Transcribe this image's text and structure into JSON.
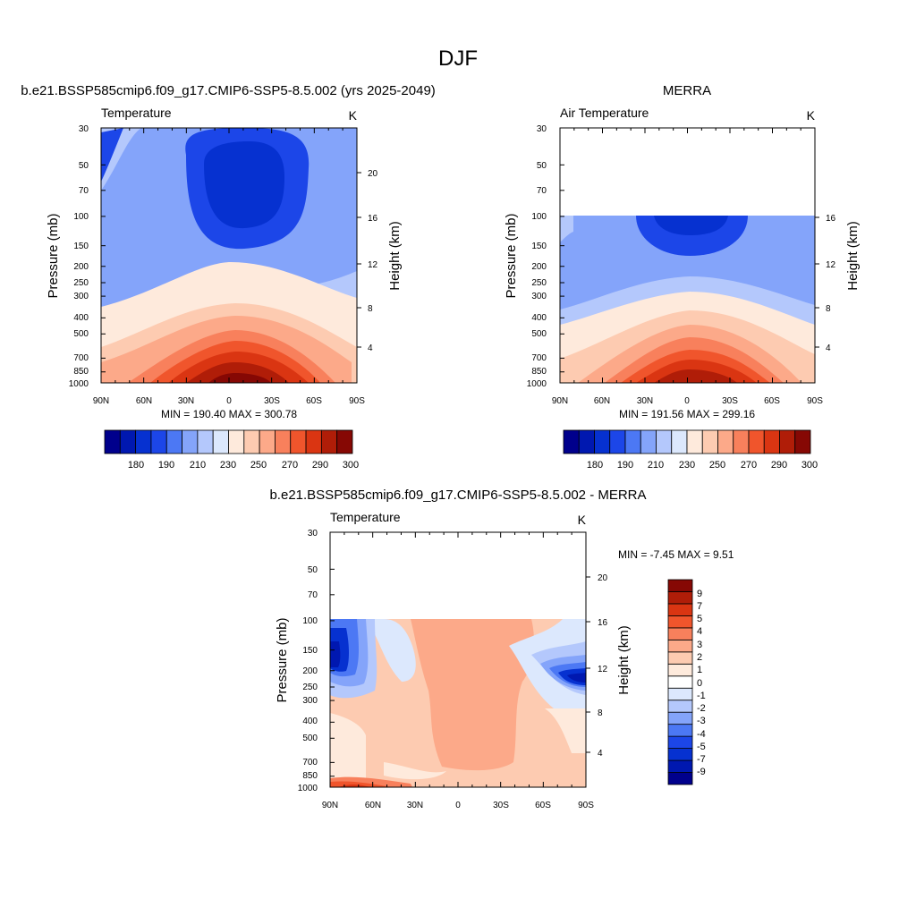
{
  "figure": {
    "title": "DJF"
  },
  "colors": {
    "temp_levels": [
      "#00008c",
      "#0018b0",
      "#0631d0",
      "#1c46e8",
      "#4c78f4",
      "#84a4fa",
      "#b4c8fc",
      "#dce8fd",
      "#feeadc",
      "#fdcbb1",
      "#fca989",
      "#f8805c",
      "#f0552c",
      "#da3512",
      "#b01d08",
      "#860804"
    ],
    "diff_levels": [
      "#00008c",
      "#0018b0",
      "#0631d0",
      "#1c46e8",
      "#4c78f4",
      "#84a4fa",
      "#b4c8fc",
      "#dce8fd",
      "#ffffff",
      "#feeadc",
      "#fdcbb1",
      "#fca989",
      "#f8805c",
      "#f0552c",
      "#da3512",
      "#b01d08",
      "#860804"
    ]
  },
  "panels": [
    {
      "id": "model",
      "top_title": "b.e21.BSSP585cmip6.f09_g17.CMIP6-SSP5-8.5.002 (yrs 2025-2049)",
      "left_label": "Temperature",
      "right_label": "K",
      "ylabel": "Pressure (mb)",
      "ylabel_right": "Height (km)",
      "minmax": "MIN = 190.40  MAX = 300.78",
      "x_ticks": [
        "90N",
        "60N",
        "30N",
        "0",
        "30S",
        "60S",
        "90S"
      ],
      "p_ticks": [
        "30",
        "50",
        "70",
        "100",
        "150",
        "200",
        "250",
        "300",
        "400",
        "500",
        "700",
        "850",
        "1000"
      ],
      "h_ticks": [
        "20",
        "16",
        "12",
        "8",
        "4"
      ],
      "colorbar_labels": [
        "180",
        "190",
        "210",
        "230",
        "250",
        "270",
        "290",
        "300"
      ]
    },
    {
      "id": "merra",
      "top_title": "MERRA",
      "left_label": "Air Temperature",
      "right_label": "K",
      "ylabel": "Pressure (mb)",
      "ylabel_right": "Height (km)",
      "minmax": "MIN = 191.56  MAX = 299.16",
      "x_ticks": [
        "90N",
        "60N",
        "30N",
        "0",
        "30S",
        "60S",
        "90S"
      ],
      "p_ticks": [
        "30",
        "50",
        "70",
        "100",
        "150",
        "200",
        "250",
        "300",
        "400",
        "500",
        "700",
        "850",
        "1000"
      ],
      "h_ticks": [
        "16",
        "12",
        "8",
        "4"
      ],
      "colorbar_labels": [
        "180",
        "190",
        "210",
        "230",
        "250",
        "270",
        "290",
        "300"
      ]
    },
    {
      "id": "diff",
      "top_title": "b.e21.BSSP585cmip6.f09_g17.CMIP6-SSP5-8.5.002 - MERRA",
      "left_label": "Temperature",
      "right_label": "K",
      "ylabel": "Pressure (mb)",
      "ylabel_right": "Height (km)",
      "minmax": "MIN =  -7.45  MAX =   9.51",
      "x_ticks": [
        "90N",
        "60N",
        "30N",
        "0",
        "30S",
        "60S",
        "90S"
      ],
      "p_ticks": [
        "30",
        "50",
        "70",
        "100",
        "150",
        "200",
        "250",
        "300",
        "400",
        "500",
        "700",
        "850",
        "1000"
      ],
      "h_ticks": [
        "20",
        "16",
        "12",
        "8",
        "4"
      ],
      "colorbar_labels": [
        "9",
        "7",
        "5",
        "4",
        "3",
        "2",
        "1",
        "0",
        "-1",
        "-2",
        "-3",
        "-4",
        "-5",
        "-7",
        "-9"
      ]
    }
  ],
  "chart_data": [
    {
      "type": "heatmap",
      "title": "b.e21.BSSP585cmip6.f09_g17.CMIP6-SSP5-8.5.002 (yrs 2025-2049)",
      "xlabel": "",
      "ylabel": "Pressure (mb)",
      "x": [
        "90N",
        "60N",
        "30N",
        "0",
        "30S",
        "60S",
        "90S"
      ],
      "y_pressure": [
        30,
        50,
        70,
        100,
        150,
        200,
        250,
        300,
        400,
        500,
        700,
        850,
        1000
      ],
      "ylim": [
        1000,
        30
      ],
      "y_log": true,
      "value_range": [
        190.4,
        300.78
      ],
      "units": "K",
      "levels": [
        180,
        190,
        200,
        210,
        220,
        230,
        240,
        250,
        260,
        270,
        280,
        290,
        300
      ]
    },
    {
      "type": "heatmap",
      "title": "MERRA",
      "xlabel": "",
      "ylabel": "Pressure (mb)",
      "x": [
        "90N",
        "60N",
        "30N",
        "0",
        "30S",
        "60S",
        "90S"
      ],
      "y_pressure": [
        100,
        150,
        200,
        250,
        300,
        400,
        500,
        700,
        850,
        1000
      ],
      "ylim": [
        1000,
        30
      ],
      "y_log": true,
      "value_range": [
        191.56,
        299.16
      ],
      "units": "K",
      "levels": [
        180,
        190,
        200,
        210,
        220,
        230,
        240,
        250,
        260,
        270,
        280,
        290,
        300
      ]
    },
    {
      "type": "heatmap",
      "title": "b.e21.BSSP585cmip6.f09_g17.CMIP6-SSP5-8.5.002 - MERRA",
      "xlabel": "",
      "ylabel": "Pressure (mb)",
      "x": [
        "90N",
        "60N",
        "30N",
        "0",
        "30S",
        "60S",
        "90S"
      ],
      "y_pressure": [
        100,
        150,
        200,
        250,
        300,
        400,
        500,
        700,
        850,
        1000
      ],
      "ylim": [
        1000,
        30
      ],
      "y_log": true,
      "value_range": [
        -7.45,
        9.51
      ],
      "units": "K",
      "levels": [
        -9,
        -7,
        -5,
        -4,
        -3,
        -2,
        -1,
        0,
        1,
        2,
        3,
        4,
        5,
        7,
        9
      ]
    }
  ]
}
